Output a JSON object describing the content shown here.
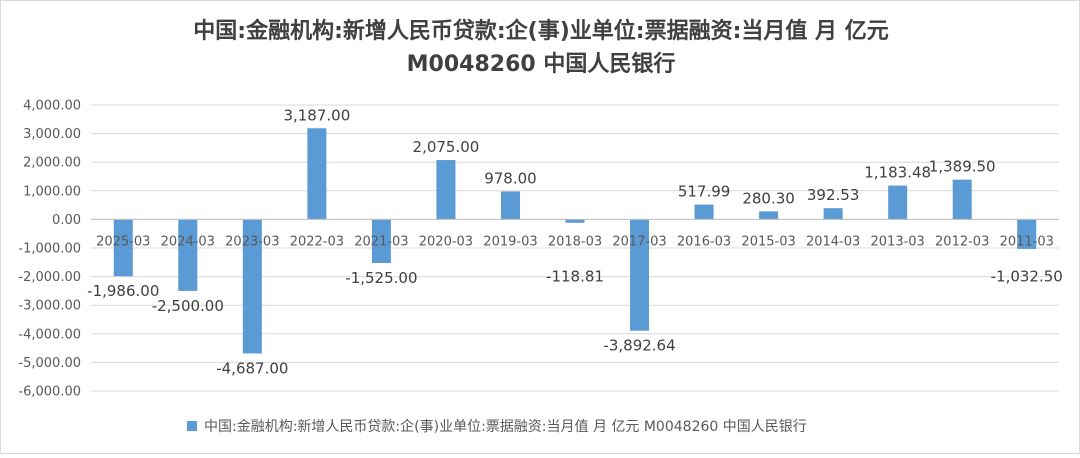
{
  "chart_data": {
    "type": "bar",
    "title_line1": "中国:金融机构:新增人民币贷款:企(事)业单位:票据融资:当月值 月 亿元",
    "title_line2": "M0048260 中国人民银行",
    "categories": [
      "2025-03",
      "2024-03",
      "2023-03",
      "2022-03",
      "2021-03",
      "2020-03",
      "2019-03",
      "2018-03",
      "2017-03",
      "2016-03",
      "2015-03",
      "2014-03",
      "2013-03",
      "2012-03",
      "2011-03"
    ],
    "series": [
      {
        "name": "中国:金融机构:新增人民币贷款:企(事)业单位:票据融资:当月值 月 亿元 M0048260 中国人民银行",
        "values": [
          -1986.0,
          -2500.0,
          -4687.0,
          3187.0,
          -1525.0,
          2075.0,
          978.0,
          -118.81,
          -3892.64,
          517.99,
          280.3,
          392.53,
          1183.48,
          1389.5,
          -1032.5
        ],
        "labels": [
          "-1,986.00",
          "-2,500.00",
          "-4,687.00",
          "3,187.00",
          "-1,525.00",
          "2,075.00",
          "978.00",
          "-118.81",
          "-3,892.64",
          "517.99",
          "280.30",
          "392.53",
          "1,183.48",
          "1,389.50",
          "-1,032.50"
        ],
        "color": "#5b9bd5"
      }
    ],
    "ylim": [
      -6000,
      4000
    ],
    "yticks": [
      4000,
      3000,
      2000,
      1000,
      0,
      -1000,
      -2000,
      -3000,
      -4000,
      -5000,
      -6000
    ],
    "ytick_labels": [
      "4,000.00",
      "3,000.00",
      "2,000.00",
      "1,000.00",
      "0.00",
      "-1,000.00",
      "-2,000.00",
      "-3,000.00",
      "-4,000.00",
      "-5,000.00",
      "-6,000.00"
    ],
    "grid": true,
    "legend_position": "bottom"
  }
}
